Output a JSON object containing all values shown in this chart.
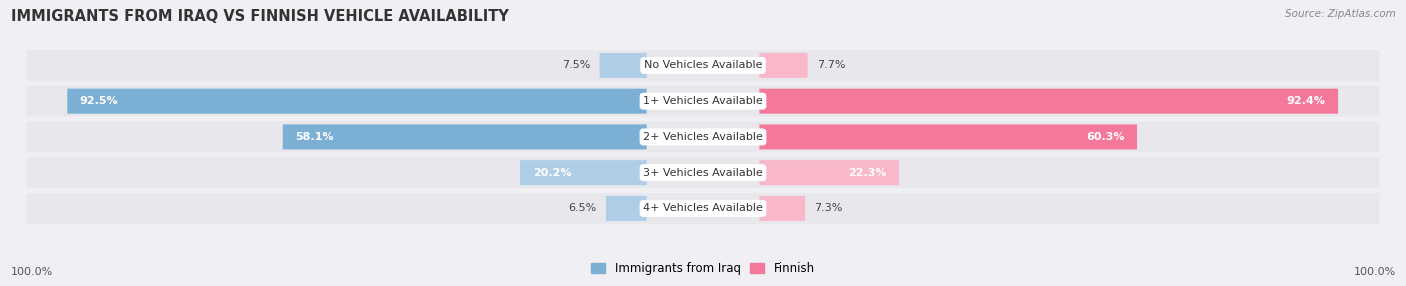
{
  "title": "IMMIGRANTS FROM IRAQ VS FINNISH VEHICLE AVAILABILITY",
  "source": "Source: ZipAtlas.com",
  "categories": [
    "No Vehicles Available",
    "1+ Vehicles Available",
    "2+ Vehicles Available",
    "3+ Vehicles Available",
    "4+ Vehicles Available"
  ],
  "iraq_values": [
    7.5,
    92.5,
    58.1,
    20.2,
    6.5
  ],
  "finnish_values": [
    7.7,
    92.4,
    60.3,
    22.3,
    7.3
  ],
  "iraq_color": "#7bafd4",
  "finnish_color": "#f4789a",
  "iraq_color_light": "#aecde6",
  "finnish_color_light": "#f9b8ca",
  "iraq_label": "Immigrants from Iraq",
  "finnish_label": "Finnish",
  "max_value": 100.0,
  "row_bg_color": "#e8e8ec",
  "title_fontsize": 10.5,
  "label_fontsize": 8,
  "value_fontsize": 8,
  "axis_label_left": "100.0%",
  "axis_label_right": "100.0%",
  "value_threshold": 15
}
